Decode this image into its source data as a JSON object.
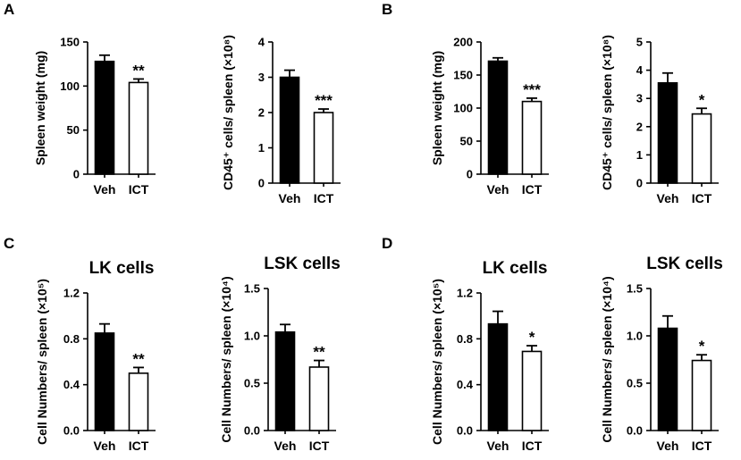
{
  "figure": {
    "panel_labels": [
      "A",
      "B",
      "C",
      "D"
    ]
  },
  "chart_data": [
    {
      "type": "bar",
      "panel": "A",
      "categories": [
        "Veh",
        "ICT"
      ],
      "values": [
        128,
        104
      ],
      "errors": [
        7,
        4
      ],
      "significance": [
        "",
        "**"
      ],
      "ylabel": "Spleen weight (mg)",
      "ylim": [
        0,
        150
      ],
      "yticks": [
        "0",
        "50",
        "100",
        "150"
      ],
      "colors": [
        "#000000",
        "#ffffff"
      ]
    },
    {
      "type": "bar",
      "panel": "A",
      "categories": [
        "Veh",
        "ICT"
      ],
      "values": [
        3.0,
        2.0
      ],
      "errors": [
        0.2,
        0.1
      ],
      "significance": [
        "",
        "***"
      ],
      "ylabel": "CD45⁺ cells/ spleen (×10⁸)",
      "ylim": [
        0,
        4
      ],
      "yticks": [
        "0",
        "1",
        "2",
        "3",
        "4"
      ],
      "colors": [
        "#000000",
        "#ffffff"
      ]
    },
    {
      "type": "bar",
      "panel": "B",
      "categories": [
        "Veh",
        "ICT"
      ],
      "values": [
        171,
        110
      ],
      "errors": [
        5,
        5
      ],
      "significance": [
        "",
        "***"
      ],
      "ylabel": "Spleen weight (mg)",
      "ylim": [
        0,
        200
      ],
      "yticks": [
        "0",
        "50",
        "100",
        "150",
        "200"
      ],
      "colors": [
        "#000000",
        "#ffffff"
      ]
    },
    {
      "type": "bar",
      "panel": "B",
      "categories": [
        "Veh",
        "ICT"
      ],
      "values": [
        3.55,
        2.45
      ],
      "errors": [
        0.35,
        0.2
      ],
      "significance": [
        "",
        "*"
      ],
      "ylabel": "CD45⁺ cells/ spleen (×10⁸)",
      "ylim": [
        0,
        5
      ],
      "yticks": [
        "0",
        "1",
        "2",
        "3",
        "4",
        "5"
      ],
      "colors": [
        "#000000",
        "#ffffff"
      ]
    },
    {
      "type": "bar",
      "panel": "C",
      "title": "LK cells",
      "categories": [
        "Veh",
        "ICT"
      ],
      "values": [
        0.85,
        0.5
      ],
      "errors": [
        0.08,
        0.05
      ],
      "significance": [
        "",
        "**"
      ],
      "ylabel": "Cell Numbers/ spleen (×10⁵)",
      "ylim": [
        0,
        1.2
      ],
      "yticks": [
        "0.0",
        "0.4",
        "0.8",
        "1.2"
      ],
      "colors": [
        "#000000",
        "#ffffff"
      ]
    },
    {
      "type": "bar",
      "panel": "C",
      "title": "LSK cells",
      "categories": [
        "Veh",
        "ICT"
      ],
      "values": [
        1.04,
        0.67
      ],
      "errors": [
        0.08,
        0.07
      ],
      "significance": [
        "",
        "**"
      ],
      "ylabel": "Cell Numbers/ spleen (×10⁴)",
      "ylim": [
        0,
        1.5
      ],
      "yticks": [
        "0.0",
        "0.5",
        "1.0",
        "1.5"
      ],
      "colors": [
        "#000000",
        "#ffffff"
      ]
    },
    {
      "type": "bar",
      "panel": "D",
      "title": "LK cells",
      "categories": [
        "Veh",
        "ICT"
      ],
      "values": [
        0.93,
        0.69
      ],
      "errors": [
        0.11,
        0.05
      ],
      "significance": [
        "",
        "*"
      ],
      "ylabel": "Cell Numbers/ spleen (×10⁵)",
      "ylim": [
        0,
        1.2
      ],
      "yticks": [
        "0.0",
        "0.4",
        "0.8",
        "1.2"
      ],
      "colors": [
        "#000000",
        "#ffffff"
      ]
    },
    {
      "type": "bar",
      "panel": "D",
      "title": "LSK cells",
      "categories": [
        "Veh",
        "ICT"
      ],
      "values": [
        1.08,
        0.74
      ],
      "errors": [
        0.13,
        0.06
      ],
      "significance": [
        "",
        "*"
      ],
      "ylabel": "Cell Numbers/ spleen (×10⁴)",
      "ylim": [
        0,
        1.5
      ],
      "yticks": [
        "0.0",
        "0.5",
        "1.0",
        "1.5"
      ],
      "colors": [
        "#000000",
        "#ffffff"
      ]
    }
  ]
}
